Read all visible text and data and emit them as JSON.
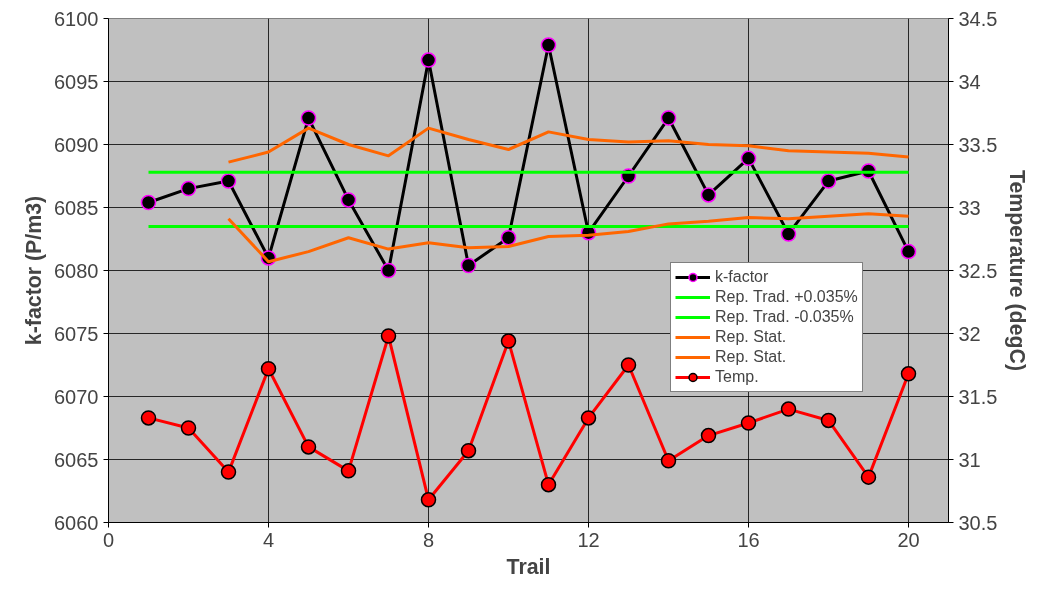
{
  "chart_data": {
    "type": "line",
    "xlabel": "Trail",
    "ylabel": "k-factor (P/m3)",
    "y2label": "Temperature (degC)",
    "x": [
      1,
      2,
      3,
      4,
      5,
      6,
      7,
      8,
      9,
      10,
      11,
      12,
      13,
      14,
      15,
      16,
      17,
      18,
      19,
      20
    ],
    "xlim": [
      0,
      21
    ],
    "xticks": [
      0,
      4,
      8,
      12,
      16,
      20
    ],
    "ylim": [
      6060,
      6100
    ],
    "yticks": [
      6060,
      6065,
      6070,
      6075,
      6080,
      6085,
      6090,
      6095,
      6100
    ],
    "y2lim": [
      30.5,
      34.5
    ],
    "y2ticks": [
      30.5,
      31,
      31.5,
      32,
      32.5,
      33,
      33.5,
      34,
      34.5
    ],
    "grid": true,
    "legend": "right",
    "series": [
      {
        "name": "k-factor",
        "color": "#000000",
        "marker": "circle",
        "values": [
          6085.4,
          6086.5,
          6087.1,
          6081.0,
          6092.1,
          6085.6,
          6080.0,
          6096.7,
          6080.4,
          6082.6,
          6097.9,
          6083.0,
          6087.5,
          6092.1,
          6086.0,
          6088.9,
          6082.9,
          6087.1,
          6087.9,
          6081.5
        ]
      },
      {
        "name": "Rep. Trad. +0.035%",
        "color": "#00ff00",
        "values": [
          6087.8,
          6087.8,
          6087.8,
          6087.8,
          6087.8,
          6087.8,
          6087.8,
          6087.8,
          6087.8,
          6087.8,
          6087.8,
          6087.8,
          6087.8,
          6087.8,
          6087.8,
          6087.8,
          6087.8,
          6087.8,
          6087.8,
          6087.8
        ]
      },
      {
        "name": "Rep. Trad. -0.035%",
        "color": "#00ff00",
        "values": [
          6083.5,
          6083.5,
          6083.5,
          6083.5,
          6083.5,
          6083.5,
          6083.5,
          6083.5,
          6083.5,
          6083.5,
          6083.5,
          6083.5,
          6083.5,
          6083.5,
          6083.5,
          6083.5,
          6083.5,
          6083.5,
          6083.5,
          6083.5
        ]
      },
      {
        "name": "Rep. Stat.",
        "color": "#ff6600",
        "x": [
          3,
          4,
          5,
          6,
          7,
          8,
          9,
          10,
          11,
          12,
          13,
          14,
          15,
          16,
          17,
          18,
          19,
          20
        ],
        "values": [
          6088.6,
          6089.4,
          6091.3,
          6090.0,
          6089.1,
          6091.3,
          6090.4,
          6089.6,
          6091.0,
          6090.4,
          6090.2,
          6090.3,
          6090.0,
          6089.9,
          6089.5,
          6089.4,
          6089.3,
          6089.0
        ]
      },
      {
        "name": "Rep. Stat.",
        "color": "#ff6600",
        "x": [
          3,
          4,
          5,
          6,
          7,
          8,
          9,
          10,
          11,
          12,
          13,
          14,
          15,
          16,
          17,
          18,
          19,
          20
        ],
        "values": [
          6084.1,
          6080.7,
          6081.5,
          6082.6,
          6081.7,
          6082.2,
          6081.8,
          6081.9,
          6082.7,
          6082.8,
          6083.1,
          6083.7,
          6083.9,
          6084.2,
          6084.1,
          6084.3,
          6084.5,
          6084.3
        ]
      },
      {
        "name": "Temp.",
        "color": "#ff0000",
        "marker": "circle",
        "axis": "y2",
        "values": [
          31.33,
          31.25,
          30.9,
          31.72,
          31.1,
          30.91,
          31.98,
          30.68,
          31.07,
          31.94,
          30.8,
          31.33,
          31.75,
          30.99,
          31.19,
          31.29,
          31.4,
          31.31,
          30.86,
          31.68
        ]
      }
    ]
  }
}
